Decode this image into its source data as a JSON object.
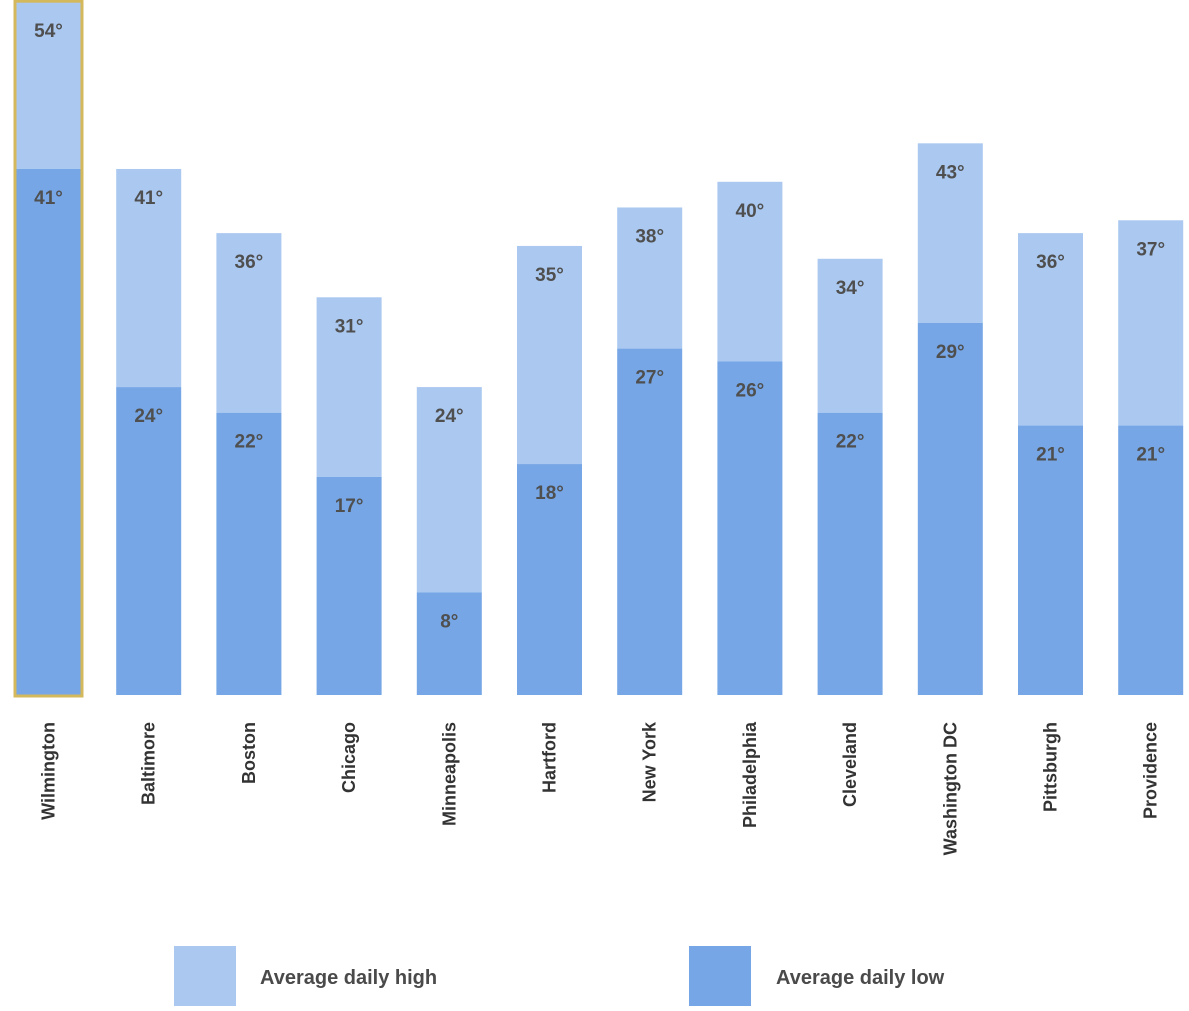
{
  "chart_data": {
    "type": "bar",
    "stacked": "overlay",
    "categories": [
      "Wilmington",
      "Baltimore",
      "Boston",
      "Chicago",
      "Minneapolis",
      "Hartford",
      "New York",
      "Philadelphia",
      "Cleveland",
      "Washington DC",
      "Pittsburgh",
      "Providence"
    ],
    "series": [
      {
        "name": "Average daily high",
        "values": [
          54,
          41,
          36,
          31,
          24,
          35,
          38,
          40,
          34,
          43,
          36,
          37
        ],
        "labels": [
          "54°",
          "41°",
          "36°",
          "31°",
          "24°",
          "35°",
          "38°",
          "40°",
          "34°",
          "43°",
          "36°",
          "37°"
        ],
        "color": "#abc9f0"
      },
      {
        "name": "Average daily low",
        "values": [
          41,
          24,
          22,
          17,
          8,
          18,
          27,
          26,
          22,
          29,
          21,
          21
        ],
        "labels": [
          "41°",
          "24°",
          "22°",
          "17°",
          "8°",
          "18°",
          "27°",
          "26°",
          "22°",
          "29°",
          "21°",
          "21°"
        ],
        "color": "#76a6e6"
      }
    ],
    "highlighted_category": "Wilmington",
    "highlight_color": "#d4b85c",
    "ylim": [
      0,
      54
    ],
    "grid": false,
    "legend": "bottom"
  }
}
